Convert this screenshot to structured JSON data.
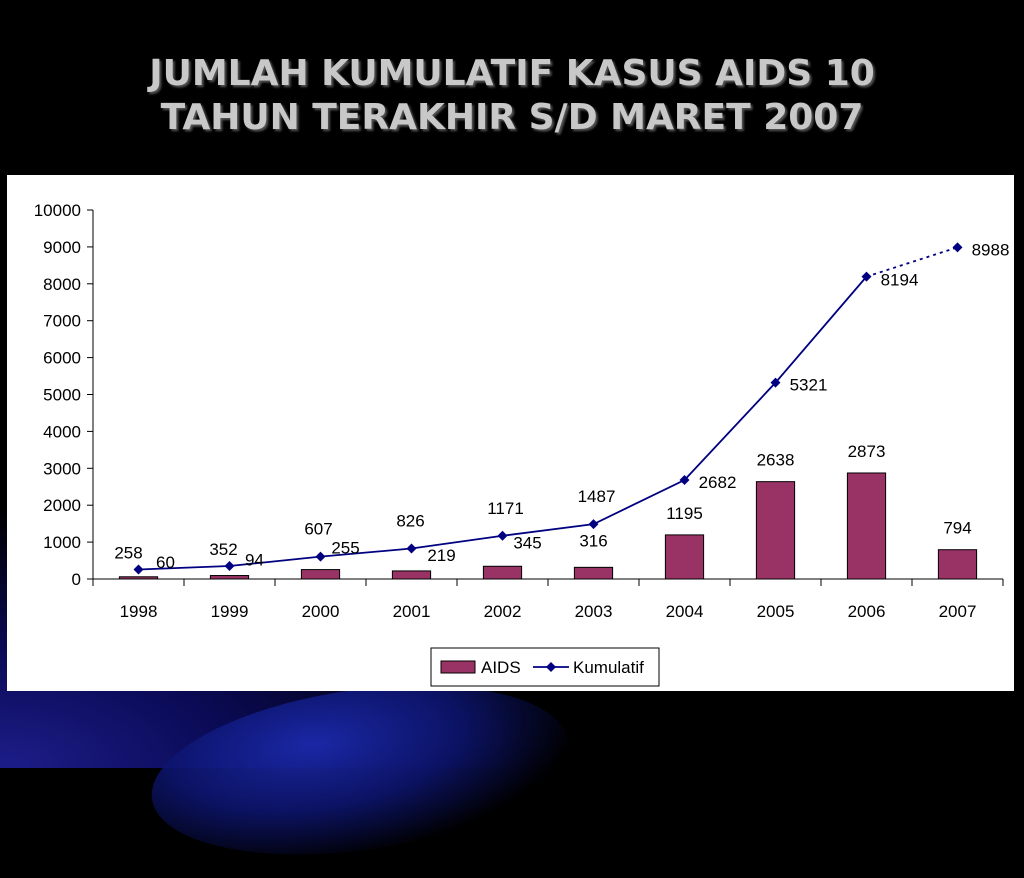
{
  "slide": {
    "title_line1": "JUMLAH KUMULATIF KASUS AIDS 10",
    "title_line2": "TAHUN TERAKHIR S/D MARET 2007"
  },
  "chart_data": {
    "type": "bar",
    "categories": [
      "1998",
      "1999",
      "2000",
      "2001",
      "2002",
      "2003",
      "2004",
      "2005",
      "2006",
      "2007"
    ],
    "series": [
      {
        "name": "AIDS",
        "type": "bar",
        "color": "#993366",
        "values": [
          60,
          94,
          255,
          219,
          345,
          316,
          1195,
          2638,
          2873,
          794
        ],
        "labels": [
          "60",
          "94",
          "255",
          "219",
          "345",
          "316",
          "1195",
          "2638",
          "2873",
          "794"
        ]
      },
      {
        "name": "Kumulatif",
        "type": "line",
        "color": "#000080",
        "values": [
          258,
          352,
          607,
          826,
          1171,
          1487,
          2682,
          5321,
          8194,
          8988
        ],
        "labels": [
          "258",
          "352",
          "607",
          "826",
          "1171",
          "1487",
          "2682",
          "5321",
          "8194",
          "8988"
        ],
        "dashed_last_segment": true
      }
    ],
    "ylim": [
      0,
      10000
    ],
    "yticks": [
      "0",
      "1000",
      "2000",
      "3000",
      "4000",
      "5000",
      "6000",
      "7000",
      "8000",
      "9000",
      "10000"
    ],
    "grid": false,
    "legend_position": "bottom"
  }
}
